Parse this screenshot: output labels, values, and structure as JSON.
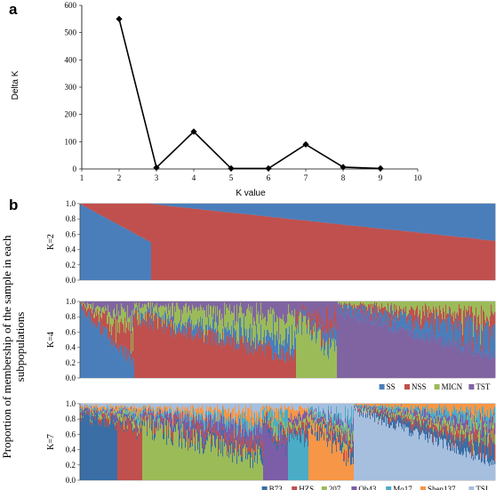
{
  "figure": {
    "panel_a_letter": "a",
    "panel_b_letter": "b",
    "shared_ylabel_line1": "Proportion of membership of the sample in each",
    "shared_ylabel_line2": "subpopulations"
  },
  "chart_data": [
    {
      "type": "line",
      "panel": "a",
      "xlabel": "K value",
      "ylabel": "Delta K",
      "xlim": [
        1,
        10
      ],
      "ylim": [
        0,
        600
      ],
      "xticks": [
        1,
        2,
        3,
        4,
        5,
        6,
        7,
        8,
        9,
        10
      ],
      "yticks": [
        0,
        100,
        200,
        300,
        400,
        500,
        600
      ],
      "x": [
        2,
        3,
        4,
        5,
        6,
        7,
        8,
        9
      ],
      "series": [
        {
          "values": [
            550,
            5,
            137,
            2,
            2,
            90,
            7,
            2
          ],
          "color": "#000000"
        }
      ],
      "grid": false
    },
    {
      "type": "area",
      "panel": "b",
      "row_label": "K=2",
      "ylim": [
        0,
        1
      ],
      "yticks": [
        "0.0",
        "0.2",
        "0.4",
        "0.6",
        "0.8",
        "1.0"
      ],
      "legend": [],
      "segments": [
        {
          "start": 0.0,
          "end": 0.17,
          "dominant": 0,
          "from": 1.0,
          "to": 0.5,
          "noise": 0.01
        },
        {
          "start": 0.17,
          "end": 1.0,
          "dominant": 1,
          "from": 1.0,
          "to": 0.52,
          "noise": 0.01
        }
      ],
      "palette": [
        "#4a7ebb",
        "#c0504d"
      ]
    },
    {
      "type": "area",
      "panel": "b",
      "row_label": "K=4",
      "ylim": [
        0,
        1
      ],
      "yticks": [
        "0.0",
        "0.2",
        "0.4",
        "0.6",
        "0.8",
        "1.0"
      ],
      "legend": [
        "SS",
        "NSS",
        "MICN",
        "TST"
      ],
      "segments": [
        {
          "start": 0.0,
          "end": 0.13,
          "dominant": 0,
          "from": 1.0,
          "to": 0.3,
          "noise": 0.18
        },
        {
          "start": 0.13,
          "end": 0.52,
          "dominant": 1,
          "from": 0.92,
          "to": 0.4,
          "noise": 0.25
        },
        {
          "start": 0.52,
          "end": 0.62,
          "dominant": 2,
          "from": 0.92,
          "to": 0.5,
          "noise": 0.35
        },
        {
          "start": 0.62,
          "end": 1.0,
          "dominant": 3,
          "from": 1.0,
          "to": 0.4,
          "noise": 0.2
        }
      ],
      "palette": [
        "#4a7ebb",
        "#c0504d",
        "#9bbb59",
        "#8064a2"
      ]
    },
    {
      "type": "area",
      "panel": "b",
      "row_label": "K=7",
      "ylim": [
        0,
        1
      ],
      "yticks": [
        "0.0",
        "0.2",
        "0.4",
        "0.6",
        "0.8",
        "1.0"
      ],
      "legend": [
        "B73",
        "HZS",
        "207",
        "Oh43",
        "Mo17",
        "Shen137",
        "TSI"
      ],
      "segments": [
        {
          "start": 0.0,
          "end": 0.09,
          "dominant": 0,
          "from": 0.95,
          "to": 0.85,
          "noise": 0.2
        },
        {
          "start": 0.09,
          "end": 0.15,
          "dominant": 1,
          "from": 0.9,
          "to": 0.75,
          "noise": 0.25
        },
        {
          "start": 0.15,
          "end": 0.44,
          "dominant": 2,
          "from": 0.9,
          "to": 0.45,
          "noise": 0.35
        },
        {
          "start": 0.44,
          "end": 0.5,
          "dominant": 3,
          "from": 0.85,
          "to": 0.6,
          "noise": 0.35
        },
        {
          "start": 0.5,
          "end": 0.55,
          "dominant": 4,
          "from": 0.8,
          "to": 0.7,
          "noise": 0.3
        },
        {
          "start": 0.55,
          "end": 0.66,
          "dominant": 5,
          "from": 0.9,
          "to": 0.4,
          "noise": 0.3
        },
        {
          "start": 0.66,
          "end": 1.0,
          "dominant": 6,
          "from": 1.0,
          "to": 0.3,
          "noise": 0.15
        }
      ],
      "palette": [
        "#3a6ea5",
        "#c0504d",
        "#9bbb59",
        "#7b5ea7",
        "#4bacc6",
        "#f79646",
        "#a6bfdf"
      ]
    }
  ]
}
